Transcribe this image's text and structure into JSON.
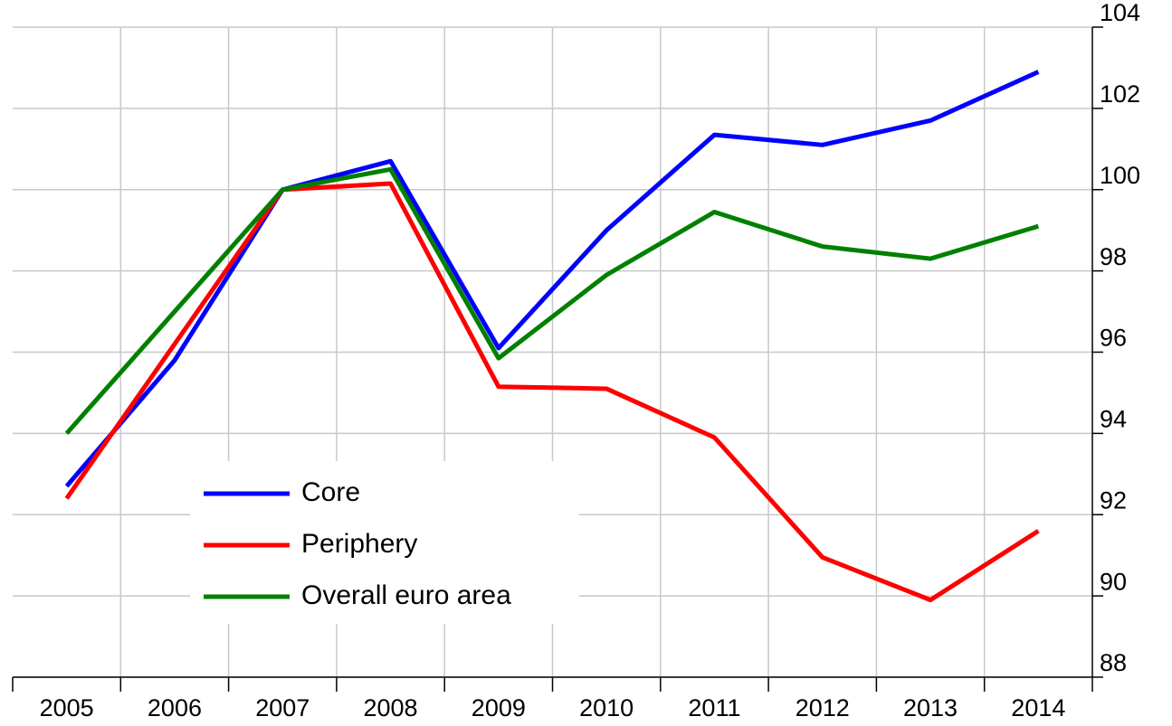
{
  "chart_data": {
    "type": "line",
    "categories": [
      "2005",
      "2006",
      "2007",
      "2008",
      "2009",
      "2010",
      "2011",
      "2012",
      "2013",
      "2014"
    ],
    "series": [
      {
        "name": "Core",
        "color": "#0000ff",
        "values": [
          92.7,
          95.8,
          100,
          100.7,
          96.1,
          99.0,
          101.35,
          101.1,
          101.7,
          102.9
        ]
      },
      {
        "name": "Periphery",
        "color": "#ff0000",
        "values": [
          92.4,
          96.2,
          100,
          100.15,
          95.15,
          95.1,
          93.9,
          90.95,
          89.9,
          91.6
        ]
      },
      {
        "name": "Overall euro area",
        "color": "#008000",
        "values": [
          94.0,
          97.0,
          100,
          100.5,
          95.85,
          97.9,
          99.45,
          98.6,
          98.3,
          99.1
        ]
      }
    ],
    "ylim": [
      88,
      104
    ],
    "yticks": [
      88,
      90,
      92,
      94,
      96,
      98,
      100,
      102,
      104
    ],
    "y_axis_side": "right",
    "grid": true,
    "legend": "lower-left"
  }
}
